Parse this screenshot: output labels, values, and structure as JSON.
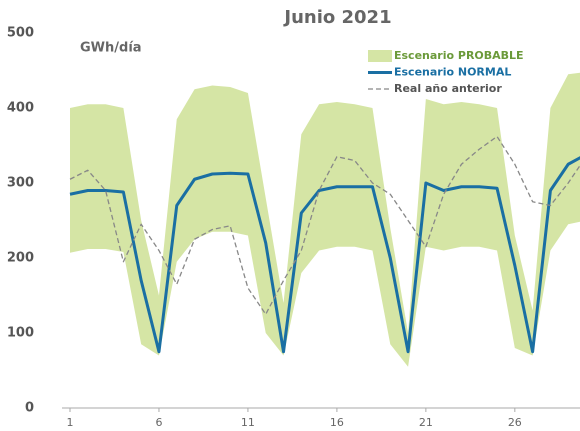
{
  "chart_data": {
    "type": "line",
    "title": "Junio 2021",
    "y_label": "GWh/día",
    "x": [
      1,
      2,
      3,
      4,
      5,
      6,
      7,
      8,
      9,
      10,
      11,
      12,
      13,
      14,
      15,
      16,
      17,
      18,
      19,
      20,
      21,
      22,
      23,
      24,
      25,
      26,
      27,
      28,
      29,
      30
    ],
    "series": [
      {
        "name": "Escenario PROBABLE",
        "color": "#d5e5a5",
        "high": [
          400,
          405,
          405,
          400,
          250,
          150,
          385,
          425,
          430,
          428,
          420,
          280,
          140,
          365,
          405,
          408,
          405,
          400,
          240,
          100,
          412,
          405,
          408,
          405,
          400,
          230,
          130,
          400,
          445,
          448
        ],
        "low": [
          207,
          212,
          212,
          208,
          85,
          70,
          195,
          225,
          235,
          235,
          230,
          100,
          70,
          180,
          210,
          215,
          215,
          210,
          85,
          55,
          215,
          210,
          215,
          215,
          210,
          80,
          70,
          210,
          245,
          250
        ]
      },
      {
        "name": "Escenario NORMAL",
        "color": "#1a6fa3",
        "values": [
          285,
          290,
          290,
          288,
          170,
          75,
          270,
          305,
          312,
          313,
          312,
          220,
          75,
          260,
          290,
          295,
          295,
          295,
          200,
          75,
          300,
          290,
          295,
          295,
          293,
          190,
          75,
          290,
          325,
          338
        ]
      },
      {
        "name": "Real año anterior",
        "color": "#888888",
        "dashed": true,
        "values": [
          305,
          317,
          290,
          195,
          245,
          210,
          165,
          225,
          238,
          243,
          160,
          125,
          170,
          210,
          290,
          335,
          330,
          300,
          285,
          250,
          215,
          285,
          325,
          345,
          362,
          325,
          275,
          270,
          300,
          335
        ]
      }
    ],
    "xlim": [
      1,
      30
    ],
    "xticks": [
      1,
      6,
      11,
      16,
      21,
      26
    ],
    "ylim": [
      0,
      500
    ],
    "yticks": [
      0,
      100,
      200,
      300,
      400,
      500
    ],
    "grid": false,
    "legend": "upper right"
  }
}
